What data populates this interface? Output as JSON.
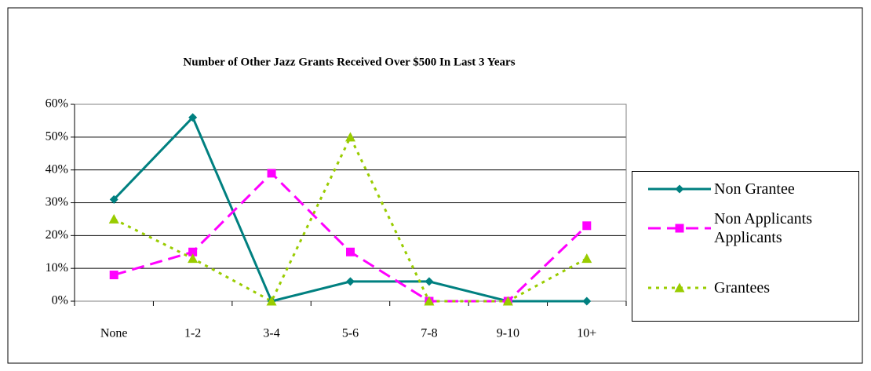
{
  "chart_data": {
    "type": "line",
    "title": "Number of Other Jazz Grants Received Over $500 In Last 3 Years",
    "categories": [
      "None",
      "1-2",
      "3-4",
      "5-6",
      "7-8",
      "9-10",
      "10+"
    ],
    "series": [
      {
        "name": "Non Grantee",
        "color": "#008080",
        "marker": "diamond",
        "dash": "solid",
        "values": [
          31,
          56,
          0,
          6,
          6,
          0,
          0
        ]
      },
      {
        "name": "Non Applicants Applicants",
        "color": "#ff00ff",
        "marker": "square",
        "dash": "long-dash",
        "values": [
          8,
          15,
          39,
          15,
          0,
          0,
          23
        ]
      },
      {
        "name": "Grantees",
        "color": "#99cc00",
        "marker": "triangle",
        "dash": "dash-dot",
        "values": [
          25,
          13,
          0,
          50,
          0,
          0,
          13
        ]
      }
    ],
    "ylim": [
      0,
      60
    ],
    "yticks": [
      {
        "value": 0,
        "label": "0%"
      },
      {
        "value": 10,
        "label": "10%"
      },
      {
        "value": 20,
        "label": "20%"
      },
      {
        "value": 30,
        "label": "30%"
      },
      {
        "value": 40,
        "label": "40%"
      },
      {
        "value": 50,
        "label": "50%"
      },
      {
        "value": 60,
        "label": "60%"
      }
    ],
    "grid": true,
    "legend": "right"
  }
}
